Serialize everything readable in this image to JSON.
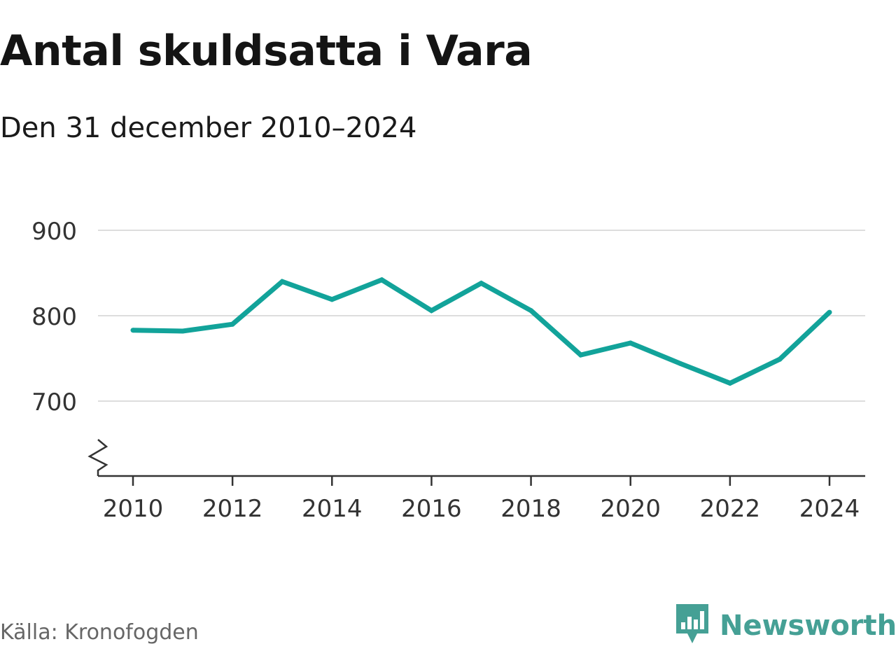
{
  "header": {
    "title": "Antal skuldsatta i Vara",
    "subtitle": "Den 31 december 2010–2024"
  },
  "footer": {
    "source": "Källa: Kronofogden",
    "brand": "Newsworthy",
    "brand_icon": "bar-chart-speech-bubble-icon"
  },
  "colors": {
    "line": "#12a39a",
    "grid": "#dddddd",
    "axis": "#333333",
    "brand": "#45a095"
  },
  "chart_data": {
    "type": "line",
    "x": [
      2010,
      2011,
      2012,
      2013,
      2014,
      2015,
      2016,
      2017,
      2018,
      2019,
      2020,
      2021,
      2022,
      2023,
      2024
    ],
    "series": [
      {
        "values": [
          783,
          782,
          790,
          840,
          819,
          842,
          806,
          838,
          806,
          754,
          768,
          744,
          721,
          749,
          804
        ]
      }
    ],
    "y_ticks": [
      700,
      800,
      900
    ],
    "x_ticks": [
      2010,
      2012,
      2014,
      2016,
      2018,
      2020,
      2022,
      2024
    ],
    "ylim": [
      700,
      900
    ],
    "y_axis_break": true,
    "grid": "horizontal"
  }
}
